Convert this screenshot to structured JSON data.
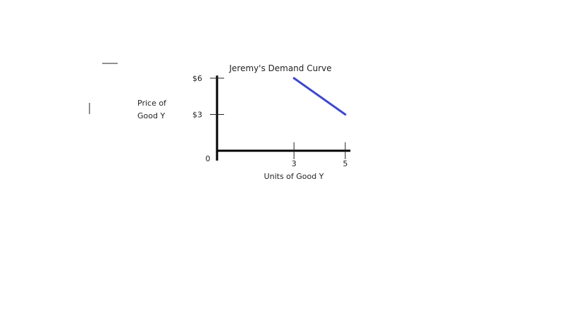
{
  "chart_data": {
    "type": "line",
    "title": "Jeremy's Demand Curve",
    "xlabel": "Units of Good Y",
    "ylabel_lines": [
      "Price of",
      "Good Y"
    ],
    "origin_label": "0",
    "x_ticks": [
      {
        "value": 3,
        "label": "3"
      },
      {
        "value": 5,
        "label": "5"
      }
    ],
    "y_ticks": [
      {
        "value": 3,
        "label": "$3"
      },
      {
        "value": 6,
        "label": "$6"
      }
    ],
    "xlim": [
      0,
      5.2
    ],
    "ylim": [
      0,
      6.1
    ],
    "grid": false,
    "series": [
      {
        "color": "#3f48cc",
        "points": [
          {
            "x": 3,
            "y": 6
          },
          {
            "x": 5,
            "y": 3
          }
        ]
      }
    ]
  }
}
